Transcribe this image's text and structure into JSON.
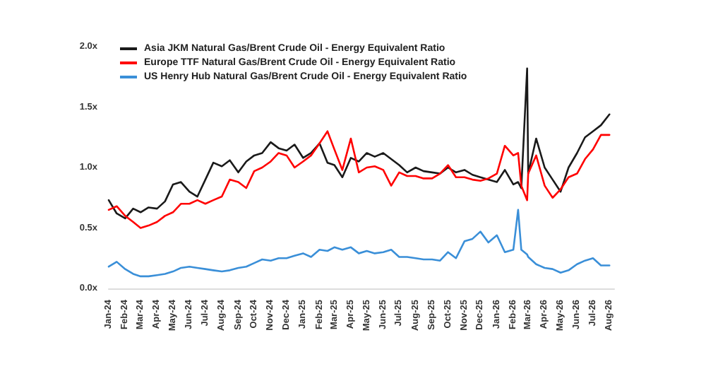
{
  "chart_data": {
    "type": "line",
    "legend": "top left",
    "marker": "none",
    "line_style": "solid",
    "x": [
      "2024-01-01",
      "2024-01-16",
      "2024-02-01",
      "2024-02-16",
      "2024-03-01",
      "2024-03-16",
      "2024-04-01",
      "2024-04-16",
      "2024-05-01",
      "2024-05-16",
      "2024-06-01",
      "2024-06-16",
      "2024-07-01",
      "2024-07-16",
      "2024-08-01",
      "2024-08-16",
      "2024-09-01",
      "2024-09-16",
      "2024-10-01",
      "2024-10-16",
      "2024-11-01",
      "2024-11-16",
      "2024-12-01",
      "2024-12-16",
      "2025-01-01",
      "2025-01-16",
      "2025-02-01",
      "2025-02-16",
      "2025-03-01",
      "2025-03-16",
      "2025-04-01",
      "2025-04-16",
      "2025-05-01",
      "2025-05-16",
      "2025-06-01",
      "2025-06-16",
      "2025-07-01",
      "2025-07-16",
      "2025-08-01",
      "2025-08-16",
      "2025-09-01",
      "2025-09-16",
      "2025-10-01",
      "2025-10-16",
      "2025-11-01",
      "2025-11-16",
      "2025-12-01",
      "2025-12-16",
      "2026-01-01",
      "2026-01-16",
      "2026-02-01",
      "2026-02-10",
      "2026-02-16",
      "2026-02-27",
      "2026-03-01",
      "2026-03-16",
      "2026-04-01",
      "2026-04-16",
      "2026-05-01",
      "2026-05-16",
      "2026-06-01",
      "2026-06-16",
      "2026-07-01",
      "2026-07-16",
      "2026-08-01"
    ],
    "series": [
      {
        "name": "Asia JKM Natural Gas/Brent Crude Oil - Energy Equivalent Ratio",
        "color": "#1a1a1a",
        "values": [
          0.73,
          0.62,
          0.58,
          0.66,
          0.63,
          0.67,
          0.66,
          0.72,
          0.86,
          0.88,
          0.8,
          0.76,
          0.9,
          1.04,
          1.01,
          1.06,
          0.96,
          1.05,
          1.1,
          1.12,
          1.21,
          1.16,
          1.14,
          1.19,
          1.08,
          1.12,
          1.2,
          1.04,
          1.02,
          0.92,
          1.08,
          1.05,
          1.12,
          1.09,
          1.12,
          1.07,
          1.02,
          0.96,
          1.0,
          0.97,
          0.96,
          0.95,
          1.0,
          0.96,
          0.98,
          0.94,
          0.92,
          0.9,
          0.88,
          0.98,
          0.86,
          0.88,
          0.83,
          1.82,
          0.95,
          1.24,
          1.0,
          0.9,
          0.8,
          1.0,
          1.12,
          1.25,
          1.3,
          1.35,
          1.44
        ]
      },
      {
        "name": "Europe TTF Natural Gas/Brent Crude Oil - Energy Equivalent Ratio",
        "color": "#ff0000",
        "values": [
          0.65,
          0.68,
          0.6,
          0.55,
          0.5,
          0.52,
          0.55,
          0.6,
          0.63,
          0.7,
          0.7,
          0.73,
          0.7,
          0.73,
          0.76,
          0.9,
          0.88,
          0.83,
          0.97,
          1.0,
          1.05,
          1.12,
          1.1,
          1.0,
          1.05,
          1.1,
          1.2,
          1.3,
          1.15,
          0.98,
          1.24,
          0.96,
          1.0,
          1.01,
          0.98,
          0.85,
          0.96,
          0.93,
          0.93,
          0.91,
          0.91,
          0.95,
          1.02,
          0.92,
          0.92,
          0.9,
          0.89,
          0.91,
          0.95,
          1.18,
          1.1,
          1.12,
          0.85,
          0.73,
          0.95,
          1.1,
          0.85,
          0.75,
          0.82,
          0.92,
          0.95,
          1.07,
          1.15,
          1.27,
          1.27
        ]
      },
      {
        "name": "US Henry Hub Natural Gas/Brent Crude Oil - Energy Equivalent Ratio",
        "color": "#3a8fd8",
        "values": [
          0.18,
          0.22,
          0.16,
          0.12,
          0.1,
          0.1,
          0.11,
          0.12,
          0.14,
          0.17,
          0.18,
          0.17,
          0.16,
          0.15,
          0.14,
          0.15,
          0.17,
          0.18,
          0.21,
          0.24,
          0.23,
          0.25,
          0.25,
          0.27,
          0.29,
          0.26,
          0.32,
          0.31,
          0.34,
          0.32,
          0.34,
          0.29,
          0.31,
          0.29,
          0.3,
          0.32,
          0.26,
          0.26,
          0.25,
          0.24,
          0.24,
          0.23,
          0.3,
          0.25,
          0.39,
          0.41,
          0.47,
          0.38,
          0.44,
          0.3,
          0.32,
          0.65,
          0.32,
          0.28,
          0.26,
          0.2,
          0.17,
          0.16,
          0.13,
          0.15,
          0.2,
          0.23,
          0.25,
          0.19,
          0.19
        ]
      }
    ],
    "ylim": [
      0,
      2
    ],
    "yticks": [
      {
        "value": 0,
        "label": "0.0x"
      },
      {
        "value": 0.5,
        "label": "0.5x"
      },
      {
        "value": 1,
        "label": "1.0x"
      },
      {
        "value": 1.5,
        "label": "1.5x"
      },
      {
        "value": 2,
        "label": "2.0x"
      }
    ],
    "xlim": [
      "2024-01-01",
      "2026-08-10"
    ],
    "xticks": [
      {
        "value": "2024-01-01",
        "label": "Jan-24"
      },
      {
        "value": "2024-02-01",
        "label": "Feb-24"
      },
      {
        "value": "2024-03-01",
        "label": "Mar-24"
      },
      {
        "value": "2024-04-01",
        "label": "Apr-24"
      },
      {
        "value": "2024-05-01",
        "label": "May-24"
      },
      {
        "value": "2024-06-01",
        "label": "Jun-24"
      },
      {
        "value": "2024-07-01",
        "label": "Jul-24"
      },
      {
        "value": "2024-08-01",
        "label": "Aug-24"
      },
      {
        "value": "2024-09-01",
        "label": "Sep-24"
      },
      {
        "value": "2024-10-01",
        "label": "Oct-24"
      },
      {
        "value": "2024-11-01",
        "label": "Nov-24"
      },
      {
        "value": "2024-12-01",
        "label": "Dec-24"
      },
      {
        "value": "2025-01-01",
        "label": "Jan-25"
      },
      {
        "value": "2025-02-01",
        "label": "Feb-25"
      },
      {
        "value": "2025-03-01",
        "label": "Mar-25"
      },
      {
        "value": "2025-04-01",
        "label": "Apr-25"
      },
      {
        "value": "2025-05-01",
        "label": "May-25"
      },
      {
        "value": "2025-06-01",
        "label": "Jun-25"
      },
      {
        "value": "2025-07-01",
        "label": "Jul-25"
      },
      {
        "value": "2025-08-01",
        "label": "Aug-25"
      },
      {
        "value": "2025-09-01",
        "label": "Sep-25"
      },
      {
        "value": "2025-10-01",
        "label": "Oct-25"
      },
      {
        "value": "2025-11-01",
        "label": "Nov-25"
      },
      {
        "value": "2025-12-01",
        "label": "Dec-25"
      },
      {
        "value": "2026-01-01",
        "label": "Jan-26"
      },
      {
        "value": "2026-02-01",
        "label": "Feb-26"
      },
      {
        "value": "2026-03-01",
        "label": "Mar-26"
      },
      {
        "value": "2026-04-01",
        "label": "Apr-26"
      },
      {
        "value": "2026-05-01",
        "label": "May-26"
      },
      {
        "value": "2026-06-01",
        "label": "Jun-26"
      },
      {
        "value": "2026-07-01",
        "label": "Jul-26"
      },
      {
        "value": "2026-08-01",
        "label": "Aug-26"
      }
    ]
  }
}
